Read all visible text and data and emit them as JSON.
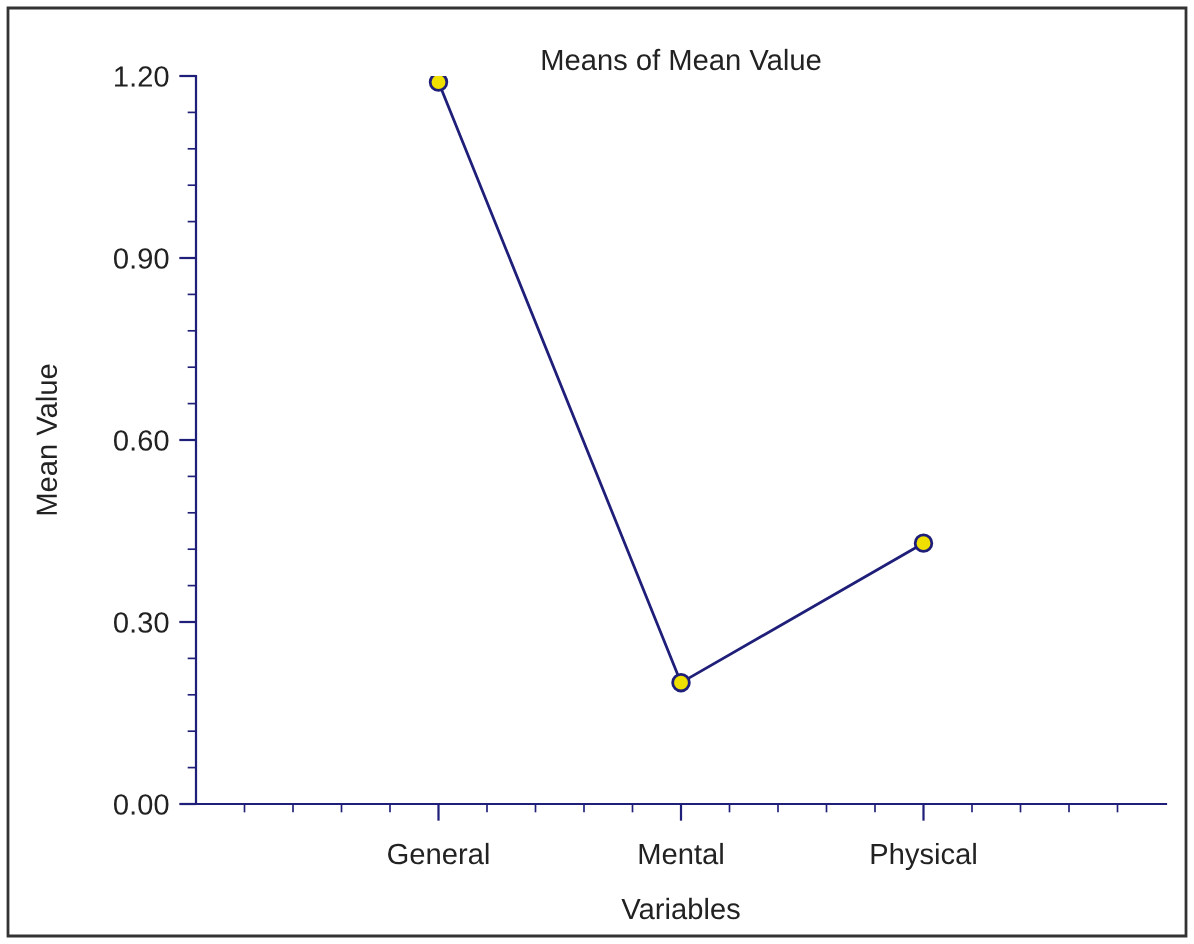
{
  "chart_data": {
    "type": "line",
    "title": "Means of Mean Value",
    "xlabel": "Variables",
    "ylabel": "Mean Value",
    "categories": [
      "General",
      "Mental",
      "Physical"
    ],
    "series": [
      {
        "color": "#1f1f7a",
        "values": [
          1.19,
          0.2,
          0.43
        ]
      }
    ],
    "ylim": [
      0,
      1.2
    ],
    "yticks": [
      {
        "value": 0,
        "label": "0.00"
      },
      {
        "value": 0.3,
        "label": "0.30"
      },
      {
        "value": 0.6,
        "label": "0.60"
      },
      {
        "value": 0.9,
        "label": "0.90"
      },
      {
        "value": 1.2,
        "label": "1.20"
      }
    ],
    "marker": "circle",
    "line_style": "solid",
    "grid": false,
    "legend": false
  }
}
